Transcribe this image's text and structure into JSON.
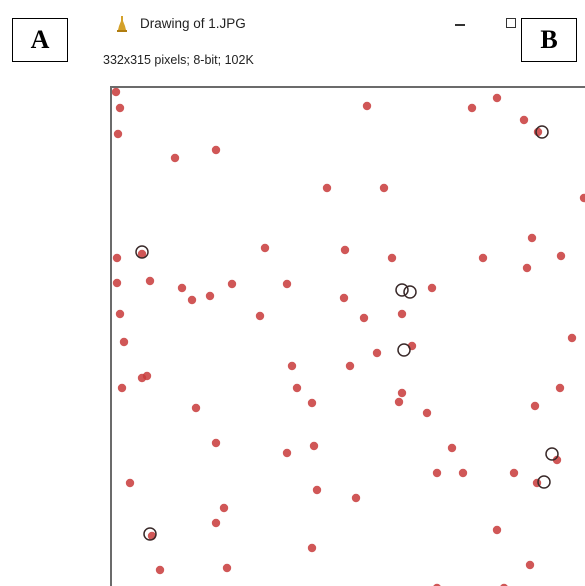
{
  "figure": {
    "panel_a_label": "A",
    "panel_b_label": "B"
  },
  "window": {
    "title": "Drawing of 1.JPG",
    "info": "332x315 pixels; 8-bit; 102K",
    "app_icon": "imagej-microscope-icon",
    "controls": {
      "minimize": "minimize-icon",
      "maximize": "maximize-icon"
    }
  },
  "colors": {
    "marker_fill": "#c83a3a",
    "marker_outline": "#3a2a2a",
    "canvas_border": "#6b6b6b"
  },
  "image": {
    "description_markers": "numbered-red-spot-markers"
  }
}
